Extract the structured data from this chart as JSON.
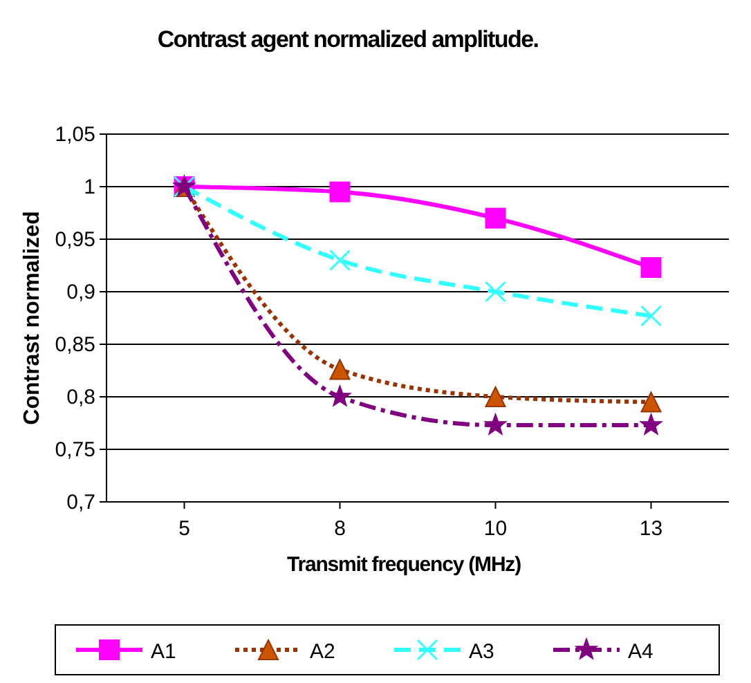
{
  "chart_data": {
    "type": "line",
    "title": "Contrast agent normalized amplitude.",
    "xlabel": "Transmit frequency (MHz)",
    "ylabel": "Contrast normalized",
    "categories": [
      "5",
      "8",
      "10",
      "13"
    ],
    "series": [
      {
        "name": "A1",
        "color": "#ff00ff",
        "marker": "square",
        "line_style": "solid",
        "values": [
          1,
          0.995,
          0.97,
          0.923
        ]
      },
      {
        "name": "A2",
        "color": "#993300",
        "marker": "triangle",
        "line_style": "dotted",
        "values": [
          1,
          0.826,
          0.8,
          0.795
        ]
      },
      {
        "name": "A3",
        "color": "#33ffff",
        "marker": "cross",
        "line_style": "dashed",
        "values": [
          1,
          0.93,
          0.9,
          0.877
        ]
      },
      {
        "name": "A4",
        "color": "#800080",
        "marker": "star",
        "line_style": "dashdot",
        "values": [
          1,
          0.8,
          0.773,
          0.773
        ]
      }
    ],
    "ylim": [
      0.7,
      1.05
    ],
    "yticks": [
      {
        "value": 0.7,
        "label": "0,7"
      },
      {
        "value": 0.75,
        "label": "0,75"
      },
      {
        "value": 0.8,
        "label": "0,8"
      },
      {
        "value": 0.85,
        "label": "0,85"
      },
      {
        "value": 0.9,
        "label": "0,9"
      },
      {
        "value": 0.95,
        "label": "0,95"
      },
      {
        "value": 1,
        "label": "1"
      },
      {
        "value": 1.05,
        "label": "1,05"
      }
    ],
    "grid": "y",
    "legend": "bottom"
  }
}
